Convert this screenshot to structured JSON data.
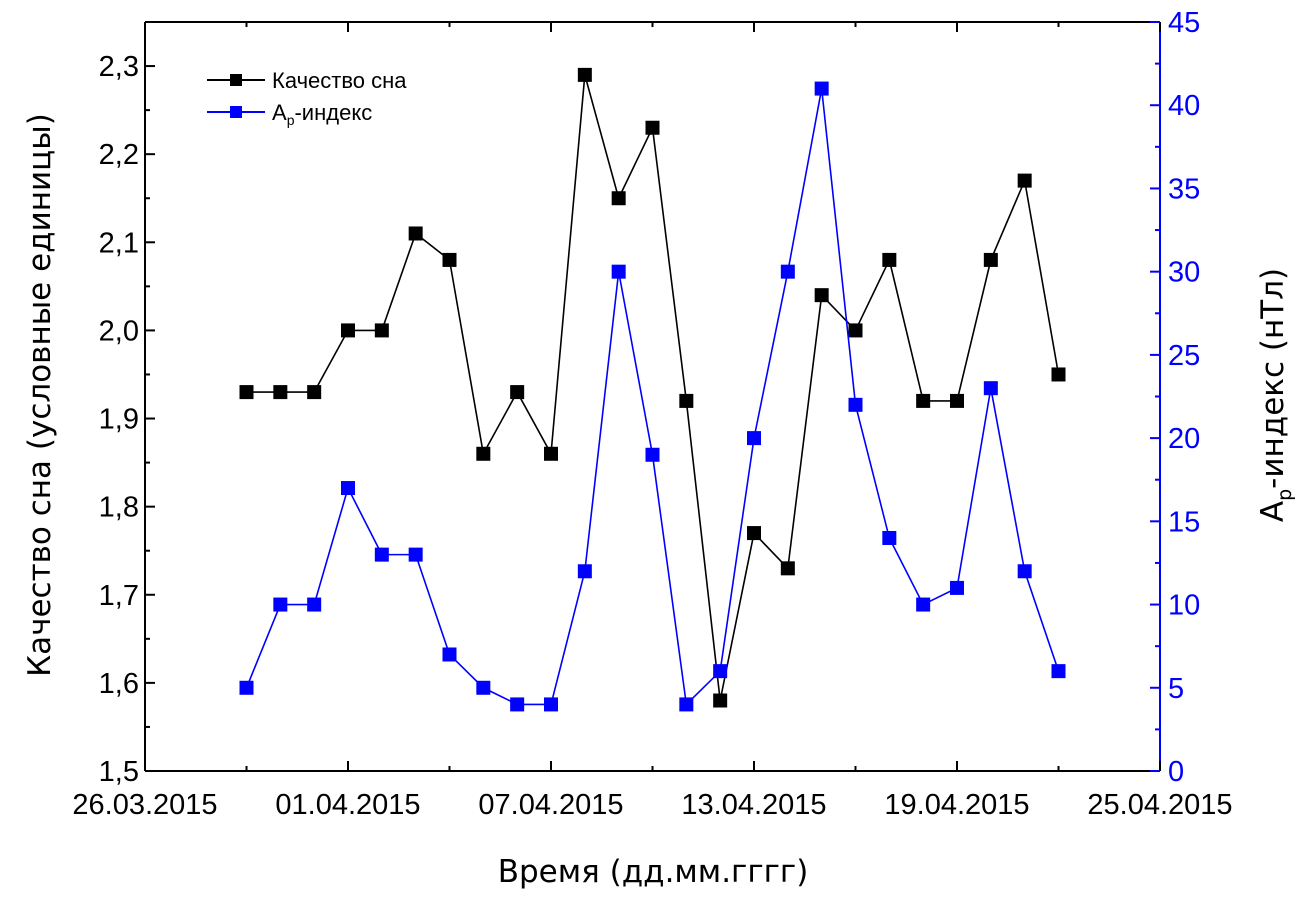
{
  "chart_data": {
    "type": "line",
    "xlabel": "Время (дд.мм.гггг)",
    "ylabel_left": "Качество сна (условные единицы)",
    "ylabel_right": {
      "main": "A",
      "sub": "p",
      "rest": "-индекс (нТл)"
    },
    "x_ticks": [
      "26.03.2015",
      "01.04.2015",
      "07.04.2015",
      "13.04.2015",
      "19.04.2015",
      "25.04.2015"
    ],
    "x_range": [
      "26.03.2015",
      "25.04.2015"
    ],
    "y_left_range": [
      1.5,
      2.35
    ],
    "y_left_ticks": [
      "1,5",
      "1,6",
      "1,7",
      "1,8",
      "1,9",
      "2,0",
      "2,1",
      "2,2",
      "2,3"
    ],
    "y_right_range": [
      0,
      45
    ],
    "y_right_ticks": [
      "0",
      "5",
      "10",
      "15",
      "20",
      "25",
      "30",
      "35",
      "40",
      "45"
    ],
    "legend_position": "top-left",
    "x_dates": [
      "29.03.2015",
      "30.03.2015",
      "31.03.2015",
      "01.04.2015",
      "02.04.2015",
      "03.04.2015",
      "04.04.2015",
      "05.04.2015",
      "06.04.2015",
      "07.04.2015",
      "08.04.2015",
      "09.04.2015",
      "10.04.2015",
      "11.04.2015",
      "12.04.2015",
      "13.04.2015",
      "14.04.2015",
      "15.04.2015",
      "16.04.2015",
      "17.04.2015",
      "18.04.2015",
      "19.04.2015",
      "20.04.2015",
      "21.04.2015",
      "22.04.2015"
    ],
    "series": [
      {
        "name": "Качество сна",
        "axis": "left",
        "color": "#000000",
        "values": [
          1.93,
          1.93,
          1.93,
          2.0,
          2.0,
          2.11,
          2.08,
          1.86,
          1.93,
          1.86,
          2.29,
          2.15,
          2.23,
          1.92,
          1.58,
          1.77,
          1.73,
          2.04,
          2.0,
          2.08,
          1.92,
          1.92,
          2.08,
          2.17,
          1.95
        ]
      },
      {
        "name": {
          "main": "A",
          "sub": "p",
          "rest": "-индекс"
        },
        "axis": "right",
        "color": "#0000ff",
        "values": [
          5,
          10,
          10,
          17,
          13,
          13,
          7,
          5,
          4,
          4,
          12,
          30,
          19,
          4,
          6,
          20,
          30,
          41,
          22,
          14,
          10,
          11,
          23,
          12,
          6
        ]
      }
    ]
  },
  "colors": {
    "left_axis": "#000000",
    "right_axis": "#0000ff"
  }
}
